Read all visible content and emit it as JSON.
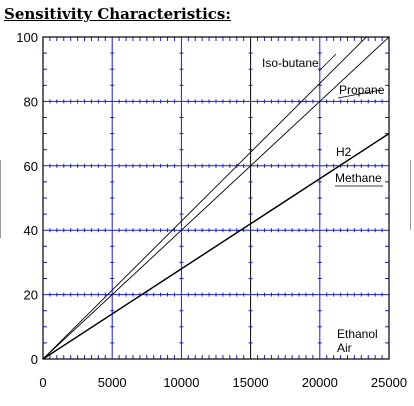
{
  "page": {
    "heading": "Sensitivity Characteristics:"
  },
  "chart_data": {
    "type": "line",
    "title": "Sensitivity Characteristics:",
    "xlabel": "",
    "ylabel": "",
    "xlim": [
      0,
      25000
    ],
    "ylim": [
      0,
      100
    ],
    "x_ticks": [
      "0",
      "5000",
      "10000",
      "15000",
      "20000",
      "25000"
    ],
    "y_ticks": [
      "0",
      "20",
      "40",
      "60",
      "80",
      "100"
    ],
    "grid": true,
    "x_minor_ticks_per_major": 10,
    "y_minor_ticks_per_major": 4,
    "colors": {
      "major_grid": "#1c1ccc",
      "minor_tick": "#1c1ccc",
      "series_line": "#000000",
      "center_gridline": "#000000"
    },
    "series": [
      {
        "name": "Iso-butane",
        "x": [
          0,
          25000
        ],
        "y": [
          0,
          107
        ]
      },
      {
        "name": "Propane",
        "x": [
          0,
          25000
        ],
        "y": [
          0,
          100
        ]
      },
      {
        "name": "H2",
        "x": [
          0,
          25000
        ],
        "y": [
          0,
          70
        ]
      },
      {
        "name": "Methane",
        "x": [
          0,
          25000
        ],
        "y": [
          0,
          70
        ]
      },
      {
        "name": "Ethanol",
        "x": [
          0,
          25000
        ],
        "y": [
          0,
          0
        ]
      },
      {
        "name": "Air",
        "x": [
          0,
          25000
        ],
        "y": [
          0,
          0
        ]
      }
    ]
  }
}
